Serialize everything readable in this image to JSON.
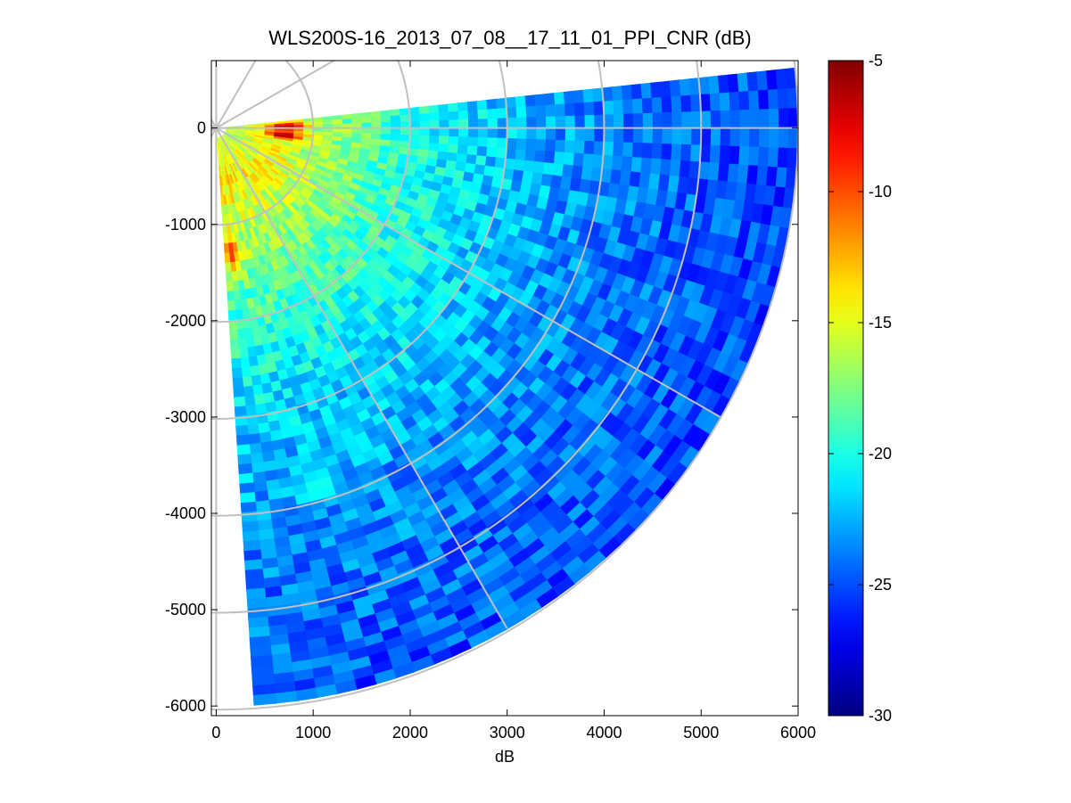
{
  "chart_data": {
    "type": "heatmap",
    "subtype": "polar-sector-ppi",
    "title": "WLS200S-16_2013_07_08__17_11_01_PPI_CNR (dB)",
    "xlabel": "dB",
    "ylabel": "",
    "xlim": [
      -50,
      6000
    ],
    "ylim": [
      -6100,
      700
    ],
    "x_ticks": [
      {
        "value": 0,
        "label": "0"
      },
      {
        "value": 1000,
        "label": "1000"
      },
      {
        "value": 2000,
        "label": "2000"
      },
      {
        "value": 3000,
        "label": "3000"
      },
      {
        "value": 4000,
        "label": "4000"
      },
      {
        "value": 5000,
        "label": "5000"
      },
      {
        "value": 6000,
        "label": "6000"
      }
    ],
    "y_ticks": [
      {
        "value": 0,
        "label": "0"
      },
      {
        "value": -1000,
        "label": "-1000"
      },
      {
        "value": -2000,
        "label": "-2000"
      },
      {
        "value": -3000,
        "label": "-3000"
      },
      {
        "value": -4000,
        "label": "-4000"
      },
      {
        "value": -5000,
        "label": "-5000"
      },
      {
        "value": -6000,
        "label": "-6000"
      }
    ],
    "sector": {
      "center": [
        0,
        0
      ],
      "min_range": 100,
      "max_range": 6000,
      "azimuth_start_deg": 6,
      "azimuth_end_deg": -86,
      "range_gate": 100,
      "azimuth_step_deg": 2
    },
    "cnr_profile": {
      "near_max": -14.5,
      "near_range": 600,
      "far_value": -27,
      "decay_range": 2600,
      "noise_amplitude": 2.0
    },
    "hotspots": [
      {
        "range": 720,
        "azimuth_deg": 1,
        "value": -5
      },
      {
        "range": 700,
        "azimuth_deg": -6,
        "value": -5
      },
      {
        "range": 1300,
        "azimuth_deg": -83,
        "value": -9
      },
      {
        "range": 3850,
        "azimuth_deg": -74,
        "value": -20
      },
      {
        "range": 3500,
        "azimuth_deg": -67,
        "value": -21
      }
    ],
    "polar_grid": {
      "rings": [
        1000,
        2000,
        3000,
        4000,
        5000,
        6000
      ],
      "spokes_deg": [
        90,
        60,
        30,
        0,
        -30,
        -60,
        -90,
        120,
        150,
        180,
        -120,
        -150
      ],
      "color": "#c0c0c0"
    },
    "colorbar": {
      "colormap": "jet",
      "range": [
        -30,
        -5
      ],
      "ticks": [
        {
          "value": -5,
          "label": "-5"
        },
        {
          "value": -10,
          "label": "-10"
        },
        {
          "value": -15,
          "label": "-15"
        },
        {
          "value": -20,
          "label": "-20"
        },
        {
          "value": -25,
          "label": "-25"
        },
        {
          "value": -30,
          "label": "-30"
        }
      ]
    }
  }
}
